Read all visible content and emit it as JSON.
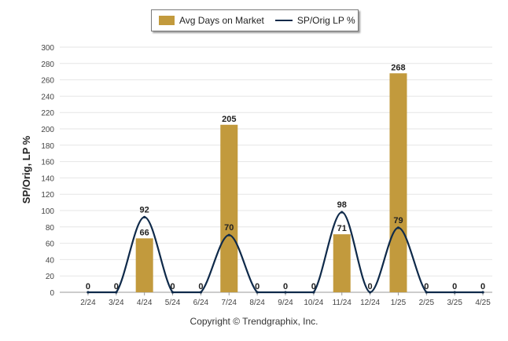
{
  "colors": {
    "bar": "#c29a3d",
    "line": "#0f2a4a",
    "grid": "#e6e6e6",
    "axis": "#999999",
    "text": "#222222"
  },
  "chart_data": {
    "type": "bar",
    "categories": [
      "2/24",
      "3/24",
      "4/24",
      "5/24",
      "6/24",
      "7/24",
      "8/24",
      "9/24",
      "10/24",
      "11/24",
      "12/24",
      "1/25",
      "2/25",
      "3/25",
      "4/25"
    ],
    "series": [
      {
        "name": "Avg Days on Market",
        "type": "bar",
        "values": [
          0,
          0,
          66,
          0,
          0,
          205,
          0,
          0,
          0,
          71,
          0,
          268,
          0,
          0,
          0
        ]
      },
      {
        "name": "SP/Orig LP %",
        "type": "line",
        "values": [
          0,
          0,
          92,
          0,
          0,
          70,
          0,
          0,
          0,
          98,
          0,
          79,
          0,
          0,
          0
        ]
      }
    ],
    "ylabel": "SP/Orig, LP %",
    "ylim": [
      0,
      300
    ],
    "yticks": [
      0,
      20,
      40,
      60,
      80,
      100,
      120,
      140,
      160,
      180,
      200,
      220,
      240,
      260,
      280,
      300
    ],
    "grid": true,
    "legend_position": "top-center"
  },
  "legend": {
    "bar_label": "Avg Days on Market",
    "line_label": "SP/Orig LP %"
  },
  "footer": {
    "copyright": "Copyright © Trendgraphix, Inc."
  }
}
